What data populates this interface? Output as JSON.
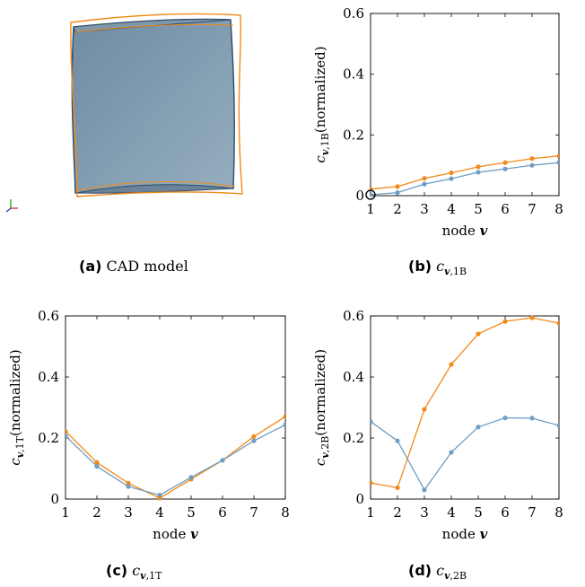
{
  "colors": {
    "orange": "#f28a19",
    "blue": "#6f9ec4",
    "cad_fill": "#7f9bb0",
    "cad_edge": "#3d5a78"
  },
  "panels": {
    "a": {
      "letter": "(a)",
      "caption": "CAD model"
    },
    "b": {
      "letter": "(b)",
      "caption_main": "c",
      "caption_sub_bold": "v",
      "caption_sub": ",1B"
    },
    "c": {
      "letter": "(c)",
      "caption_main": "c",
      "caption_sub_bold": "v",
      "caption_sub": ",1T"
    },
    "d": {
      "letter": "(d)",
      "caption_main": "c",
      "caption_sub_bold": "v",
      "caption_sub": ",2B"
    }
  },
  "chart_data": [
    {
      "id": "b",
      "type": "line",
      "xlabel": "node v",
      "ylabel": "c v,1B (normalized)",
      "xlim": [
        1,
        8
      ],
      "ylim": [
        0,
        0.6
      ],
      "x": [
        1,
        2,
        3,
        4,
        5,
        6,
        7,
        8
      ],
      "xticks": [
        "1",
        "2",
        "3",
        "4",
        "5",
        "6",
        "7",
        "8"
      ],
      "yticks": [
        "0",
        "0.2",
        "0.4",
        "0.6"
      ],
      "yticks_values": [
        0,
        0.2,
        0.4,
        0.6
      ],
      "series": [
        {
          "color": "orange",
          "values": [
            0.022,
            0.03,
            0.057,
            0.075,
            0.095,
            0.109,
            0.122,
            0.131
          ]
        },
        {
          "color": "blue",
          "values": [
            0.003,
            0.01,
            0.038,
            0.056,
            0.077,
            0.088,
            0.1,
            0.109
          ]
        }
      ],
      "marker_note": "circled point at node 1"
    },
    {
      "id": "c",
      "type": "line",
      "xlabel": "node v",
      "ylabel": "c v,1T (normalized)",
      "xlim": [
        1,
        8
      ],
      "ylim": [
        0,
        0.6
      ],
      "x": [
        1,
        2,
        3,
        4,
        5,
        6,
        7,
        8
      ],
      "xticks": [
        "1",
        "2",
        "3",
        "4",
        "5",
        "6",
        "7",
        "8"
      ],
      "yticks": [
        "0",
        "0.2",
        "0.4",
        "0.6"
      ],
      "yticks_values": [
        0,
        0.2,
        0.4,
        0.6
      ],
      "series": [
        {
          "color": "orange",
          "values": [
            0.222,
            0.12,
            0.052,
            0.003,
            0.065,
            0.127,
            0.205,
            0.27
          ]
        },
        {
          "color": "blue",
          "values": [
            0.207,
            0.107,
            0.041,
            0.013,
            0.071,
            0.127,
            0.191,
            0.243
          ]
        }
      ]
    },
    {
      "id": "d",
      "type": "line",
      "xlabel": "node v",
      "ylabel": "c v,2B (normalized)",
      "xlim": [
        1,
        8
      ],
      "ylim": [
        0,
        0.6
      ],
      "x": [
        1,
        2,
        3,
        4,
        5,
        6,
        7,
        8
      ],
      "xticks": [
        "1",
        "2",
        "3",
        "4",
        "5",
        "6",
        "7",
        "8"
      ],
      "yticks": [
        "0",
        "0.2",
        "0.4",
        "0.6"
      ],
      "yticks_values": [
        0,
        0.2,
        0.4,
        0.6
      ],
      "series": [
        {
          "color": "orange",
          "values": [
            0.053,
            0.037,
            0.294,
            0.441,
            0.541,
            0.582,
            0.594,
            0.576
          ]
        },
        {
          "color": "blue",
          "values": [
            0.254,
            0.191,
            0.03,
            0.153,
            0.236,
            0.266,
            0.265,
            0.241
          ]
        }
      ]
    }
  ]
}
